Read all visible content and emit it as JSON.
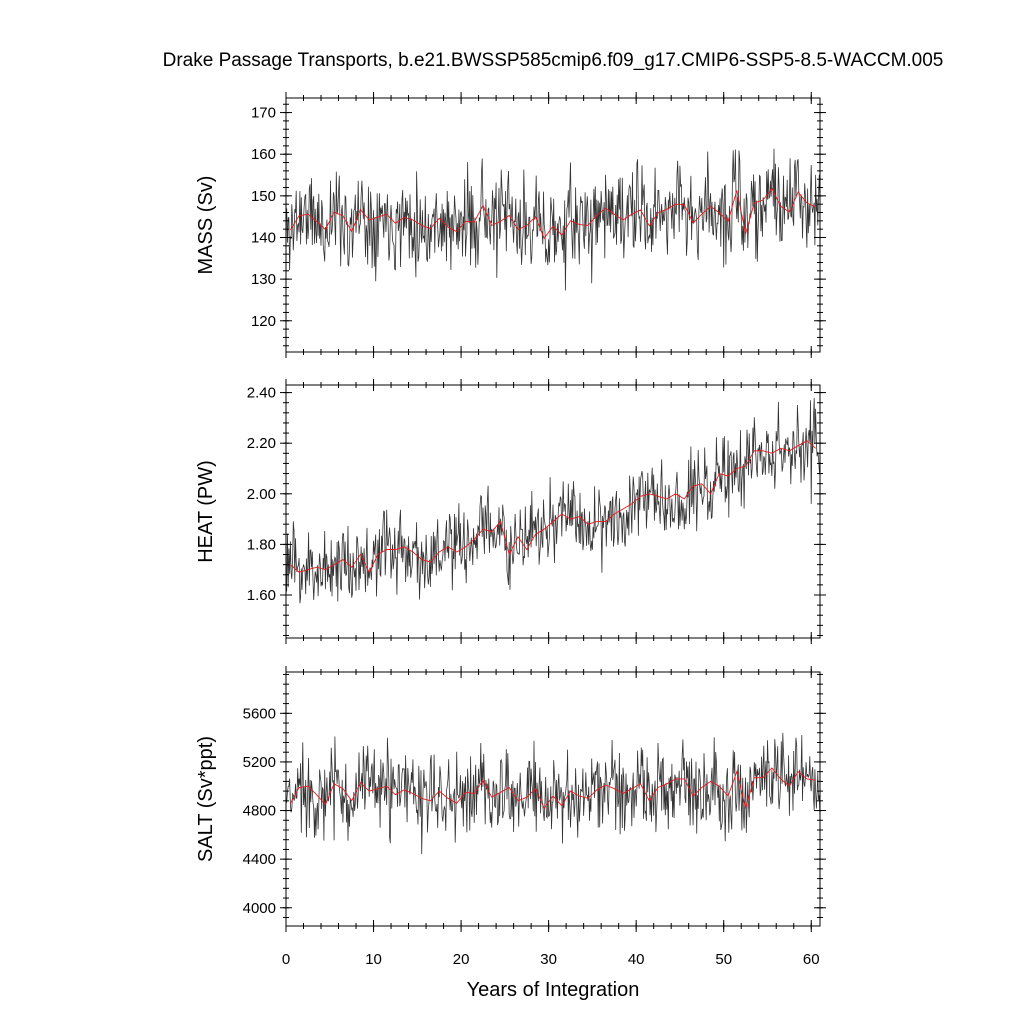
{
  "title": "Drake Passage Transports, b.e21.BWSSP585cmip6.f09_g17.CMIP6-SSP5-8.5-WACCM.005",
  "colors": {
    "raw": "#333333",
    "annual_mean": "#e8191b"
  },
  "chart_data": [
    {
      "type": "line",
      "id": "mass",
      "ylabel": "MASS (Sv)",
      "xlabel": "",
      "xlim": [
        0,
        61
      ],
      "ylim": [
        112.5,
        173.5
      ],
      "yticks": [
        120,
        130,
        140,
        150,
        160,
        170
      ],
      "ytick_labels": [
        "120",
        "130",
        "140",
        "150",
        "160",
        "170"
      ],
      "ytick_minor_step": 2,
      "grid": false,
      "base_monthly": 143.5,
      "trend_per_year": 0.09,
      "noise_amplitude": 7,
      "noise_seed": 11,
      "annual_mean": [
        141.8,
        145.2,
        145.6,
        143.8,
        141.9,
        146.1,
        145.2,
        141.4,
        146.7,
        144.2,
        144.9,
        145.6,
        143.4,
        144.8,
        144.2,
        142.9,
        142.1,
        144.6,
        142.5,
        141.4,
        143.9,
        143.7,
        147.7,
        142.9,
        143.9,
        145.3,
        141.9,
        142.9,
        145.0,
        139.8,
        142.7,
        140.6,
        144.0,
        143.1,
        142.9,
        145.3,
        147.0,
        145.6,
        144.2,
        145.6,
        146.6,
        142.8,
        145.9,
        146.8,
        148.0,
        147.9,
        143.5,
        145.6,
        147.5,
        145.9,
        143.9,
        151.3,
        140.9,
        148.3,
        149.0,
        151.8,
        147.5,
        146.1,
        150.9,
        148.3,
        147.3
      ]
    },
    {
      "type": "line",
      "id": "heat",
      "ylabel": "HEAT (PW)",
      "xlabel": "",
      "xlim": [
        0,
        61
      ],
      "ylim": [
        1.43,
        2.43
      ],
      "yticks": [
        1.6,
        1.8,
        2.0,
        2.2,
        2.4
      ],
      "ytick_labels": [
        "1.60",
        "1.80",
        "2.00",
        "2.20",
        "2.40"
      ],
      "ytick_minor_step": 0.04,
      "grid": false,
      "base_monthly": 1.7,
      "trend_per_year": 0.0075,
      "noise_amplitude": 0.1,
      "noise_seed": 23,
      "annual_mean": [
        1.72,
        1.69,
        1.7,
        1.71,
        1.7,
        1.72,
        1.74,
        1.71,
        1.76,
        1.69,
        1.76,
        1.78,
        1.78,
        1.79,
        1.77,
        1.74,
        1.73,
        1.77,
        1.79,
        1.77,
        1.79,
        1.82,
        1.86,
        1.85,
        1.89,
        1.76,
        1.83,
        1.78,
        1.84,
        1.86,
        1.89,
        1.92,
        1.9,
        1.91,
        1.88,
        1.89,
        1.89,
        1.92,
        1.94,
        1.96,
        1.99,
        2.0,
        1.99,
        1.98,
        2.0,
        1.98,
        2.03,
        2.04,
        2.0,
        2.08,
        2.07,
        2.1,
        2.11,
        2.17,
        2.17,
        2.16,
        2.18,
        2.17,
        2.19,
        2.21,
        2.18
      ]
    },
    {
      "type": "line",
      "id": "salt",
      "ylabel": "SALT (Sv*ppt)",
      "xlabel": "Years of Integration",
      "xlim": [
        0,
        61
      ],
      "ylim": [
        3850,
        5940
      ],
      "yticks": [
        4000,
        4400,
        4800,
        5200,
        5600
      ],
      "ytick_labels": [
        "4000",
        "4400",
        "4800",
        "5200",
        "5600"
      ],
      "ytick_minor_step": 80,
      "xticks": [
        0,
        10,
        20,
        30,
        40,
        50,
        60
      ],
      "xtick_labels": [
        "0",
        "10",
        "20",
        "30",
        "40",
        "50",
        "60"
      ],
      "xtick_minor_step": 2,
      "grid": false,
      "base_monthly": 4930,
      "trend_per_year": 1.5,
      "noise_amplitude": 230,
      "noise_seed": 37,
      "annual_mean": [
        4860,
        4990,
        5000,
        4930,
        4850,
        5020,
        4980,
        4880,
        5030,
        4960,
        4980,
        5000,
        4930,
        4970,
        4940,
        4900,
        4880,
        4960,
        4900,
        4860,
        4950,
        4940,
        5050,
        4910,
        4950,
        4990,
        4880,
        4910,
        4980,
        4820,
        4920,
        4840,
        4960,
        4920,
        4900,
        4970,
        5010,
        4980,
        4940,
        4980,
        5020,
        4880,
        4990,
        5020,
        5060,
        5060,
        4920,
        4990,
        5040,
        5000,
        4920,
        5120,
        4820,
        5070,
        5070,
        5150,
        5060,
        5000,
        5120,
        5060,
        5050
      ]
    }
  ]
}
